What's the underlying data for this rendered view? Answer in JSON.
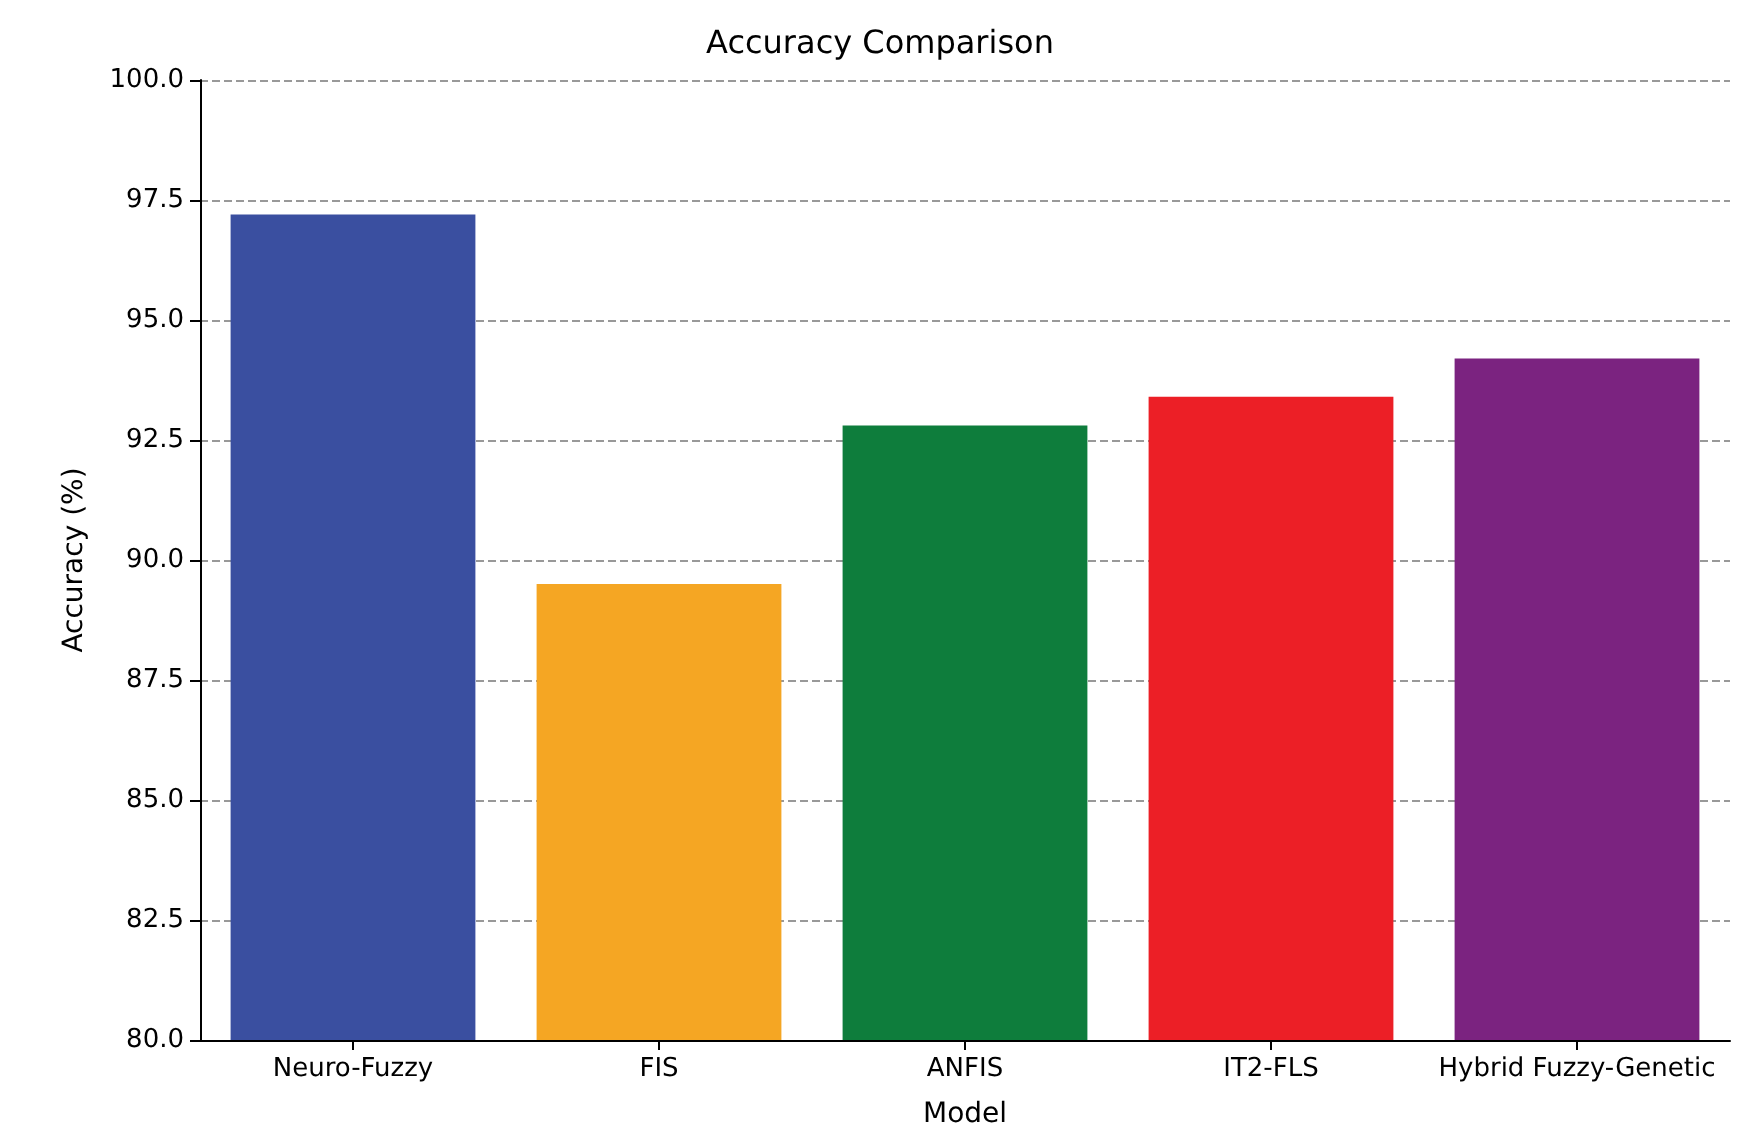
{
  "chart_data": {
    "type": "bar",
    "title": "Accuracy Comparison",
    "xlabel": "Model",
    "ylabel": "Accuracy (%)",
    "categories": [
      "Neuro-Fuzzy",
      "FIS",
      "ANFIS",
      "IT2-FLS",
      "Hybrid Fuzzy-Genetic"
    ],
    "values": [
      97.2,
      89.5,
      92.8,
      93.4,
      94.2
    ],
    "colors": [
      "#3a4fa0",
      "#f5a623",
      "#0e7d3c",
      "#ec1f26",
      "#7b2380"
    ],
    "ylim": [
      80,
      100
    ],
    "yticks": [
      {
        "value": 80,
        "label": "80.0"
      },
      {
        "value": 82.5,
        "label": "82.5"
      },
      {
        "value": 85,
        "label": "85.0"
      },
      {
        "value": 87.5,
        "label": "87.5"
      },
      {
        "value": 90,
        "label": "90.0"
      },
      {
        "value": 92.5,
        "label": "92.5"
      },
      {
        "value": 95,
        "label": "95.0"
      },
      {
        "value": 97.5,
        "label": "97.5"
      },
      {
        "value": 100,
        "label": "100.0"
      }
    ],
    "grid": "y"
  }
}
